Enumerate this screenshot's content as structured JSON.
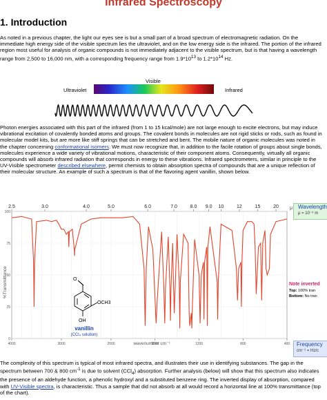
{
  "page": {
    "title": "Infrared Spectroscopy",
    "section_heading": "1. Introduction"
  },
  "intro": {
    "paragraph1_a": "As noted in a previous chapter, the light our eyes see is but a small part of a broad spectrum of electromagnetic radiation. On the immediate high energy side of the visible spectrum lies the ultraviolet, and on the low energy side is the infrared. The portion of the infrared region most useful for analysis of organic compounds is not immediately adjacent to the visible spectrum, but is that having a wavelength range from 2,500 to 16,000 nm, with a corresponding frequency range from 1.9*10",
    "exp1": "13",
    "paragraph1_b": " to 1.2*10",
    "exp2": "14",
    "paragraph1_c": " Hz.",
    "paragraph2_a": "Photon energies associated with this part of the infrared (from 1 to 15 kcal/mole) are not large enough to excite electrons, but may induce vibrational excitation of covalently bonded atoms and groups. The covalent bonds in molecules are not rigid sticks or rods, such as found in molecular model kits, but are more like stiff springs that can be stretched and bent. The mobile nature of organic molecules was noted in the chapter concerning ",
    "link_conformational": "conformational isomers",
    "paragraph2_b": ". We must now recognize that, in addition to the facile rotation of groups about single bonds, molecules experience a wide variety of vibrational motions, characteristic of their component atoms. Consequently, virtually all organic compounds will absorb infrared radiation that corresponds in energy to these vibrations. Infrared spectrometers, similar in principle to the UV-Visible spectrometer ",
    "link_described": "described elsewhere",
    "paragraph2_c": ", permit chemists to obtain absorption spectra of compounds that are a unique reflection of their molecular structure. An example of such a spectrum is that of the flavoring agent vanillin, shown below.",
    "paragraph3_a": "The complexity of this spectrum is typical of most infrared spectra, and illustrates their use in identifying substances. The gap in the spectrum between 700 & 800 cm",
    "exp3": "-1",
    "paragraph3_b": " is due to solvent (CCl",
    "sub4": "4",
    "paragraph3_c": ") absorption. Further analysis (below) will show that this spectrum also indicates the presence of an aldehyde function, a phenolic hydroxyl and a substituted benzene ring. The inverted display of absorption, compared with ",
    "link_uvvis": "UV-Visible spectra",
    "paragraph3_d": ", is characteristic. Thus a sample that did not absorb at all would record a horizontal line at 100% transmittance (top of the chart)."
  },
  "em_figure": {
    "label_visible": "Visible",
    "label_ultraviolet": "Ultraviolet",
    "label_infrared": "Infrared"
  },
  "chart_data": {
    "type": "line",
    "title": "",
    "xlabel": "wavenumber cm⁻¹",
    "ylabel": "%Transmittance",
    "top_axis_label": "μ",
    "top_ticks": [
      "2.5",
      "3.0",
      "4.0",
      "5.0",
      "6.0",
      "7.0",
      "8.0",
      "9.0",
      "10",
      "12",
      "15",
      "20"
    ],
    "bottom_ticks": [
      "4000",
      "3000",
      "2000",
      "1600",
      "1200",
      "800",
      "400"
    ],
    "y_ticks": [
      "100",
      "75",
      "50",
      "25",
      "0"
    ],
    "xlim": [
      4000,
      400
    ],
    "ylim": [
      0,
      100
    ],
    "series": [
      {
        "x": [
          4000,
          3800,
          3600,
          3560,
          3550,
          3540,
          3500,
          3300,
          3200,
          3100,
          3050,
          3000,
          2950,
          2900,
          2860,
          2850,
          2840,
          2780,
          2740,
          2735,
          2730,
          2600,
          2400,
          2200,
          2000,
          1900,
          1800,
          1740,
          1700,
          1690,
          1680,
          1660,
          1620,
          1600,
          1590,
          1580,
          1540,
          1520,
          1512,
          1505,
          1480,
          1465,
          1460,
          1455,
          1440,
          1432,
          1425,
          1400,
          1380,
          1375,
          1370,
          1340,
          1300,
          1290,
          1285,
          1270,
          1266,
          1262,
          1240,
          1200,
          1190,
          1180,
          1160,
          1155,
          1150,
          1130,
          1125,
          1120,
          1100,
          1035,
          1030,
          1025,
          1000,
          960,
          900,
          860,
          850,
          840,
          820,
          815,
          810,
          800,
          760,
          740,
          720,
          700,
          690,
          680,
          660,
          640,
          630,
          620,
          600,
          590,
          580,
          560,
          550,
          500,
          400
        ],
        "y": [
          95,
          96,
          94,
          60,
          25,
          60,
          92,
          93,
          92,
          93,
          90,
          86,
          86,
          82,
          84,
          72,
          84,
          86,
          70,
          65,
          70,
          90,
          94,
          95,
          95,
          95,
          96,
          90,
          55,
          10,
          55,
          88,
          70,
          30,
          12,
          30,
          84,
          40,
          12,
          40,
          80,
          40,
          14,
          40,
          75,
          42,
          20,
          82,
          45,
          8,
          45,
          82,
          75,
          20,
          10,
          20,
          8,
          20,
          78,
          50,
          12,
          50,
          60,
          15,
          60,
          72,
          10,
          72,
          88,
          45,
          15,
          45,
          90,
          88,
          85,
          55,
          30,
          55,
          60,
          25,
          60,
          85,
          92,
          92,
          92,
          90,
          72,
          35,
          72,
          75,
          30,
          75,
          85,
          55,
          50,
          55,
          82,
          92,
          94
        ]
      }
    ]
  },
  "ir_chart_labels": {
    "compound_name": "vanillin",
    "compound_note": "(CCl₄ solution)",
    "wavelength_box_title": "Wavelength",
    "wavelength_box_formula": "μ = 10⁻⁶ m",
    "frequency_box_title": "Frequency",
    "frequency_box_formula": "cm⁻¹ = Hz/c",
    "note_title": "Note inverted",
    "note_top_label": "Top:",
    "note_top_text": "100% tran",
    "note_bottom_label": "Bottom:",
    "note_bottom_text": "No tran",
    "molecule_O": "O",
    "molecule_OCH3": "OCH3",
    "molecule_OH": "OH"
  },
  "colors": {
    "title": "#c0392b",
    "spectrum_line": "#e0452a",
    "link": "#1a3fa8",
    "compound_name": "#1a3fa8",
    "note_title": "#e0206f"
  }
}
